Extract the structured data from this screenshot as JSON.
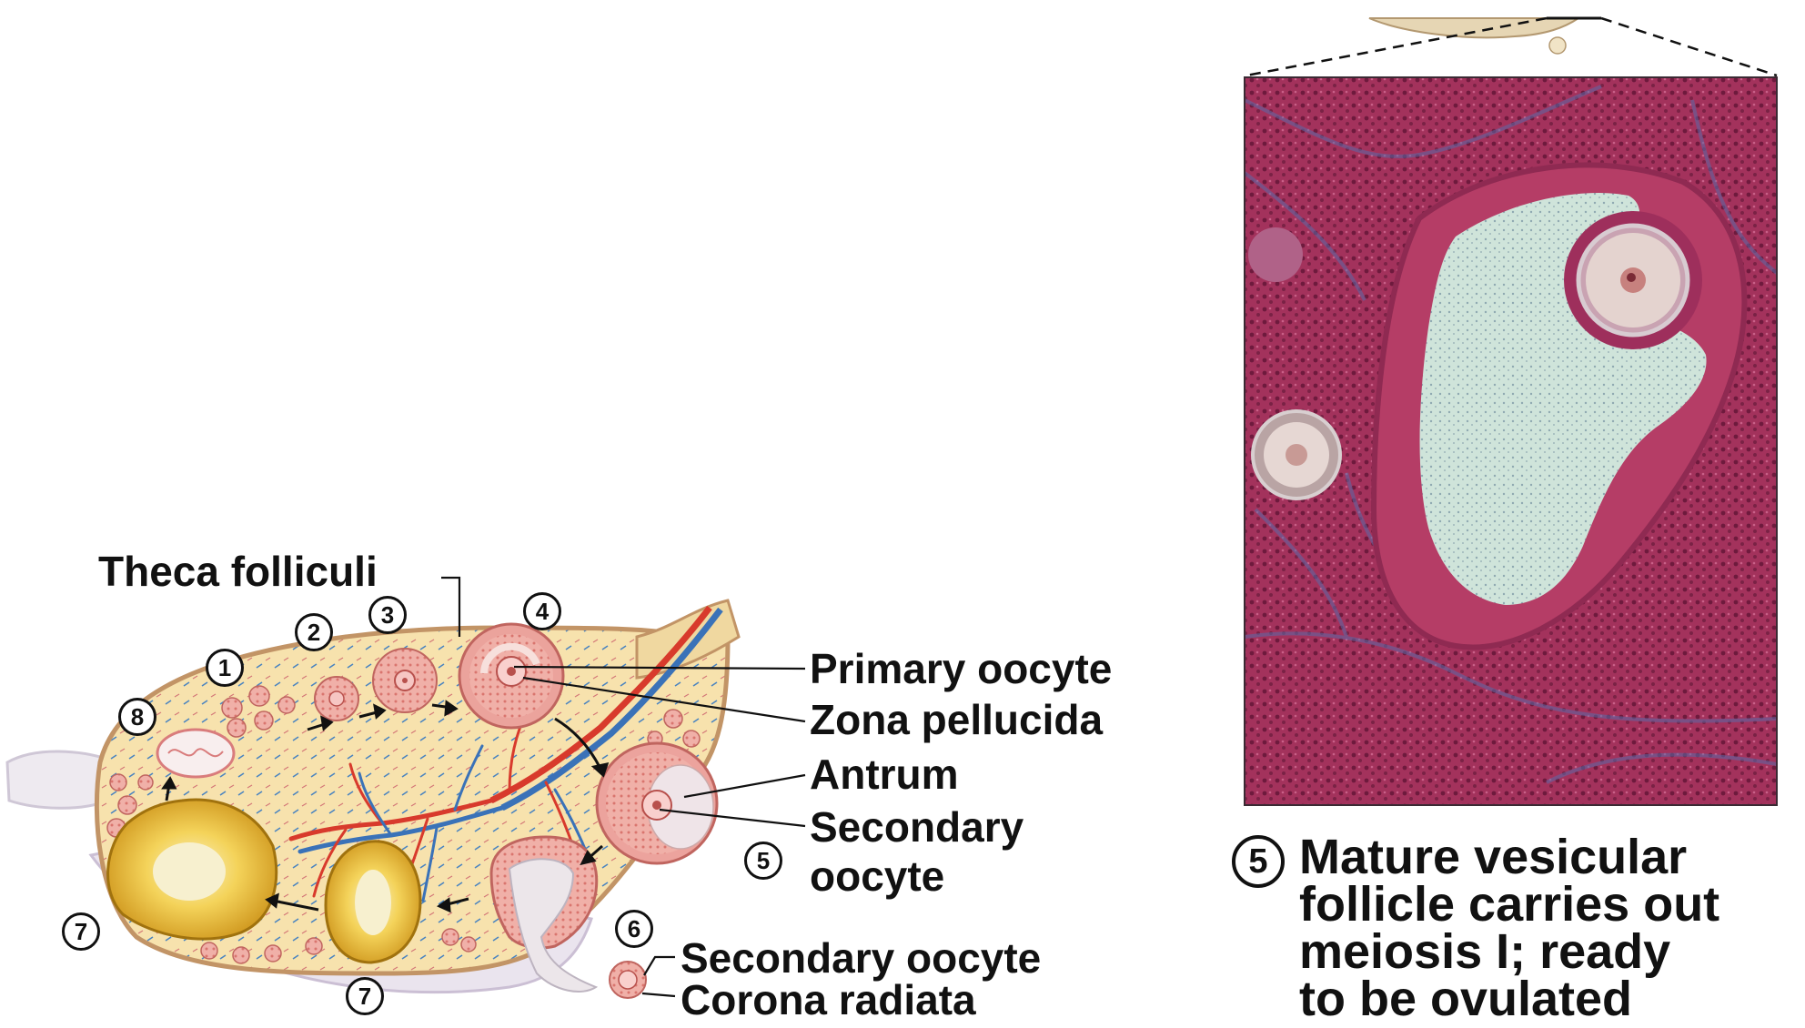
{
  "labels": {
    "theca_folliculi": "Theca folliculi",
    "primary_oocyte": "Primary oocyte",
    "zona_pellucida": "Zona pellucida",
    "antrum": "Antrum",
    "secondary_line1": "Secondary",
    "secondary_line2": "oocyte",
    "secondary_oocyte": "Secondary oocyte",
    "corona_radiata": "Corona radiata"
  },
  "stage_numbers": [
    "1",
    "2",
    "3",
    "4",
    "5",
    "6",
    "7",
    "7",
    "8"
  ],
  "caption": {
    "number": "5",
    "line1": "Mature vesicular",
    "line2": "follicle carries out",
    "line3": "meiosis I; ready",
    "line4": "to be ovulated"
  },
  "colors": {
    "ovary_fill": "#f6dfa7",
    "ovary_outline": "#c99a6a",
    "follicle_pink": "#e89a9a",
    "artery_red": "#d83a2c",
    "vein_blue": "#3a72b8",
    "corpus_luteum_yellow": "#e9b62a",
    "micrograph_stroma": "#a2305a",
    "micrograph_antrum": "#cfe3da"
  }
}
